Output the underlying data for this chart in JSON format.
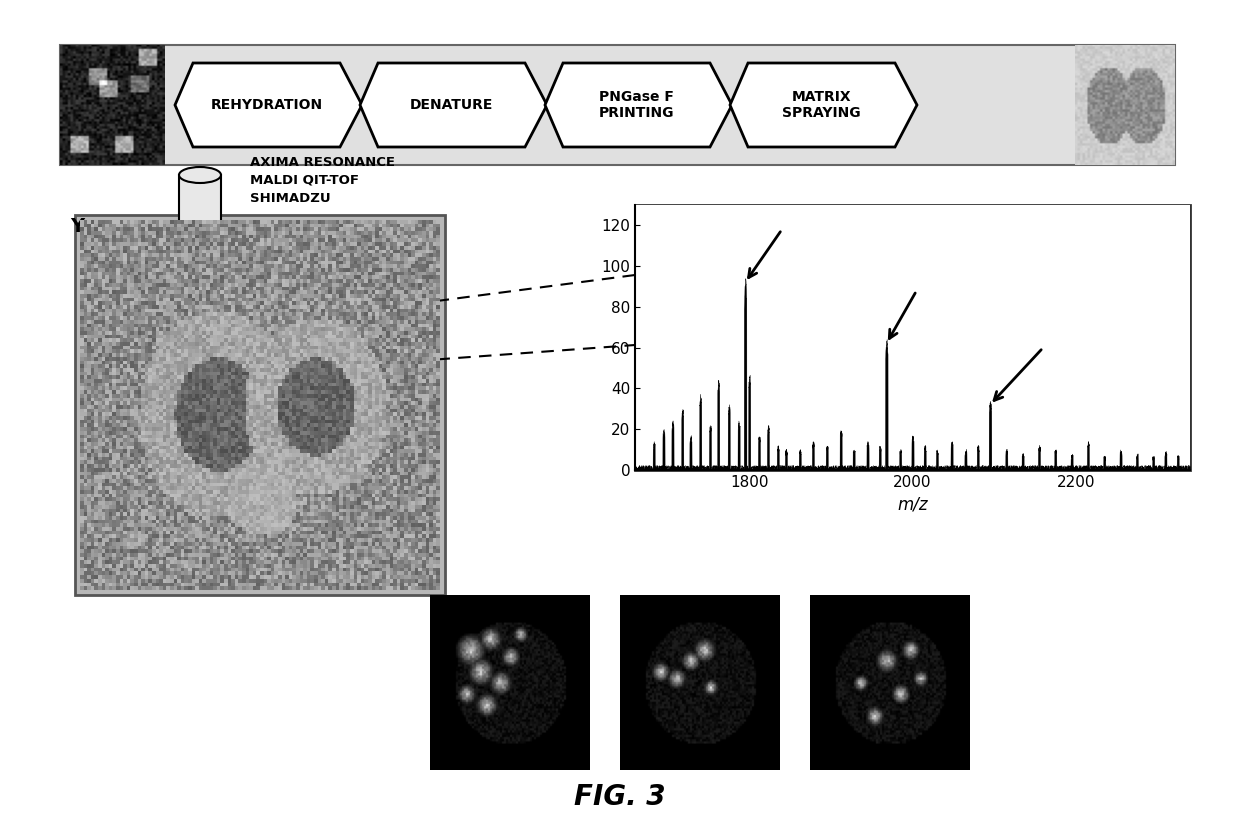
{
  "title": "FIG. 3",
  "workflow_steps": [
    "REHYDRATION",
    "DENATURE",
    "PNGase F\nPRINTING",
    "MATRIX\nSPRAYING"
  ],
  "instrument_label": "AXIMA RESONANCE\nMALDI QIT-TOF\nSHIMADZU",
  "axis_xlabel": "m/z",
  "mz_xlim": [
    1660,
    2340
  ],
  "mz_ylim": [
    0,
    130
  ],
  "mz_yticks": [
    0,
    20,
    40,
    60,
    80,
    100,
    120
  ],
  "mz_xticks": [
    1800,
    2000,
    2200
  ],
  "workflow_bg": "#e0e0e0",
  "stage_bg": "#b8b8b8",
  "white": "#ffffff",
  "black": "#111111",
  "light_gray": "#d0d0d0",
  "mid_gray": "#909090"
}
